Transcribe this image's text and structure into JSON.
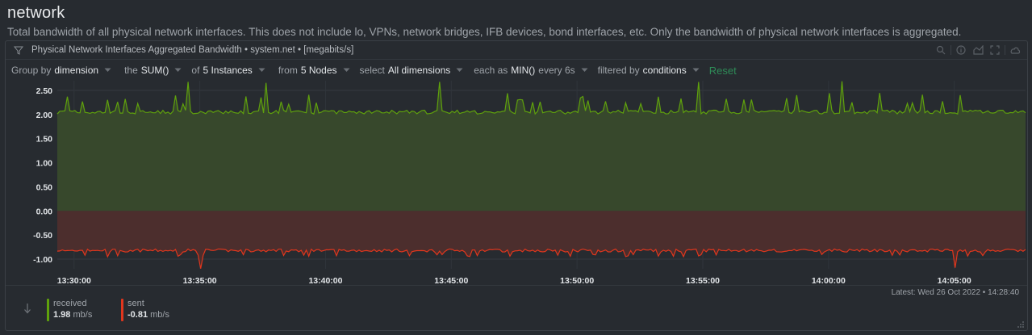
{
  "section": {
    "title": "network",
    "description": "Total bandwidth of all physical network interfaces. This does not include lo, VPNs, network bridges, IFB devices, bond interfaces, etc. Only the bandwidth of physical network interfaces is aggregated."
  },
  "chart": {
    "title": "Physical Network Interfaces Aggregated Bandwidth",
    "context": "system.net",
    "units": "[megabits/s]",
    "header_icon": "network-icon",
    "actions": [
      "zoom-icon",
      "info-icon",
      "chart-type-icon",
      "fullscreen-icon",
      "cloud-icon"
    ]
  },
  "toolbar": {
    "group_by_label": "Group by",
    "group_by_value": "dimension",
    "the_label": "the",
    "the_value": "SUM()",
    "of_label": "of",
    "of_value": "5 Instances",
    "from_label": "from",
    "from_value": "5 Nodes",
    "select_label": "select",
    "select_value": "All dimensions",
    "each_as_label": "each as",
    "each_as_value": "MIN()",
    "every_label": "every 6s",
    "filtered_label": "filtered by",
    "filtered_value": "conditions",
    "reset_label": "Reset"
  },
  "legend": {
    "latest_label": "Latest:",
    "latest_value": "Wed 26 Oct 2022 • 14:28:40",
    "items": [
      {
        "name": "received",
        "value": "1.98",
        "unit": "mb/s",
        "color": "#5fa10c"
      },
      {
        "name": "sent",
        "value": "-0.81",
        "unit": "mb/s",
        "color": "#e0361d"
      }
    ]
  },
  "colors": {
    "received_line": "#5fa10c",
    "received_fill": "#37482c",
    "sent_line": "#e0361d",
    "sent_fill": "#4c2e2d",
    "accent_reset": "#2e8b57"
  },
  "chart_data": {
    "type": "area",
    "ylim": [
      -1.2,
      2.7
    ],
    "y_ticks": [
      "2.50",
      "2.00",
      "1.50",
      "1.00",
      "0.50",
      "0.00",
      "-0.50",
      "-1.00"
    ],
    "y_tick_values": [
      2.5,
      2.0,
      1.5,
      1.0,
      0.5,
      0.0,
      -0.5,
      -1.0
    ],
    "x_ticks": [
      "13:30:00",
      "13:35:00",
      "13:40:00",
      "13:45:00",
      "13:50:00",
      "13:55:00",
      "14:00:00",
      "14:05:00"
    ],
    "x_range": [
      "13:29:20",
      "14:07:50"
    ],
    "series": [
      {
        "name": "received",
        "typical": 2.05,
        "spikes": [
          2.2,
          2.7
        ],
        "spike_at": [
          "13:34:30",
          "13:37:40",
          "13:44:30",
          "13:54:50",
          "14:00:30"
        ]
      },
      {
        "name": "sent",
        "typical": -0.82,
        "dips": [
          -0.9,
          -1.2
        ],
        "dip_at": [
          "13:35:00",
          "14:05:00"
        ]
      }
    ],
    "grid": true
  }
}
